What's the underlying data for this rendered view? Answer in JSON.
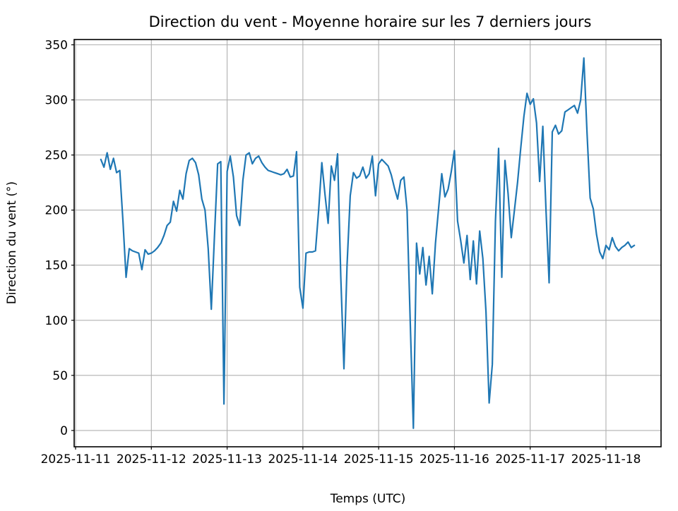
{
  "chart_data": {
    "type": "line",
    "title": "Direction du vent - Moyenne horaire sur les 7 derniers jours",
    "xlabel": "Temps (UTC)",
    "ylabel": "Direction du vent (°)",
    "line_color": "#1f77b4",
    "grid_color": "#b0b0b0",
    "spine_color": "#000000",
    "grid": "on",
    "legend_position": "none",
    "x_start": "2025-11-11 08:00",
    "x_interval_hours": 1,
    "x_tick_labels": [
      "2025-11-11",
      "2025-11-12",
      "2025-11-13",
      "2025-11-14",
      "2025-11-15",
      "2025-11-16",
      "2025-11-17",
      "2025-11-18"
    ],
    "y_ticks": [
      0,
      50,
      100,
      150,
      200,
      250,
      300,
      350
    ],
    "ylim_ticks": [
      0,
      350
    ],
    "axis_margin_fraction": 0.05,
    "values": [
      246,
      239,
      252,
      237,
      247,
      234,
      236,
      190,
      139,
      165,
      163,
      162,
      161,
      146,
      164,
      160,
      161,
      163,
      166,
      170,
      177,
      186,
      189,
      208,
      199,
      218,
      210,
      233,
      245,
      247,
      243,
      232,
      210,
      200,
      165,
      110,
      177,
      242,
      244,
      24,
      235,
      249,
      230,
      195,
      186,
      227,
      250,
      252,
      242,
      247,
      249,
      243,
      239,
      236,
      235,
      234,
      233,
      232,
      233,
      237,
      230,
      231,
      253,
      130,
      111,
      161,
      162,
      162,
      163,
      200,
      243,
      214,
      188,
      240,
      227,
      251,
      140,
      56,
      150,
      213,
      234,
      229,
      231,
      239,
      229,
      233,
      249,
      213,
      242,
      246,
      243,
      240,
      232,
      220,
      210,
      227,
      230,
      200,
      100,
      2,
      170,
      142,
      166,
      132,
      158,
      124,
      170,
      202,
      233,
      212,
      219,
      235,
      254,
      190,
      172,
      152,
      177,
      137,
      172,
      133,
      181,
      156,
      108,
      25,
      60,
      190,
      256,
      139,
      245,
      215,
      175,
      200,
      225,
      256,
      285,
      306,
      296,
      301,
      279,
      226,
      276,
      200,
      134,
      271,
      277,
      269,
      272,
      289,
      291,
      293,
      295,
      288,
      300,
      338,
      270,
      211,
      201,
      178,
      162,
      156,
      168,
      164,
      175,
      167,
      163,
      166,
      168,
      171,
      166,
      168
    ]
  }
}
